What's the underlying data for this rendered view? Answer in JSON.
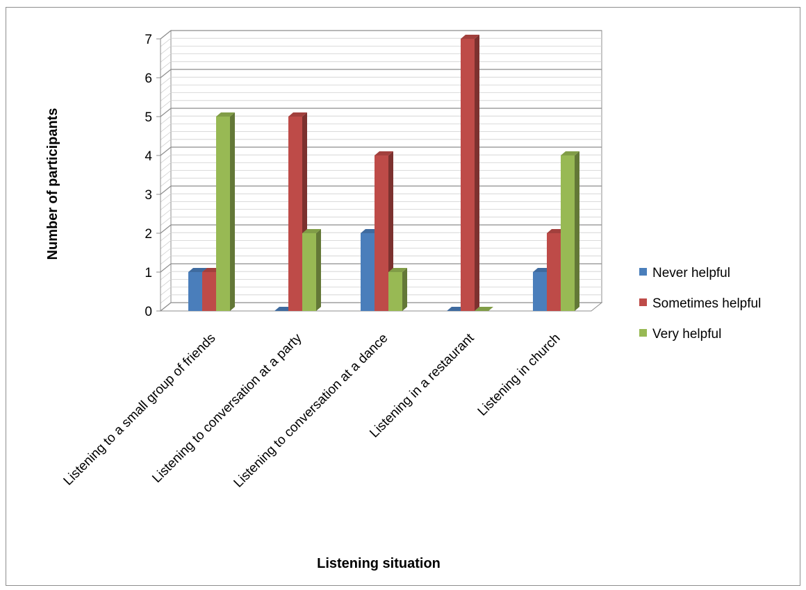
{
  "chart_data": {
    "type": "bar",
    "title": "",
    "xlabel": "Listening situation",
    "ylabel": "Number of participants",
    "categories": [
      "Listening to a small group of friends",
      "Listening to conversation at a party",
      "Listening to conversation at a dance",
      "Listening in a restaurant",
      "Listening in church"
    ],
    "series": [
      {
        "name": "Never helpful",
        "values": [
          1,
          0,
          2,
          0,
          1
        ],
        "color": "#4a7ebb"
      },
      {
        "name": "Sometimes helpful",
        "values": [
          1,
          5,
          4,
          7,
          2
        ],
        "color": "#be4b48"
      },
      {
        "name": "Very helpful",
        "values": [
          5,
          2,
          1,
          0,
          4
        ],
        "color": "#98b954"
      }
    ],
    "ylim": [
      0,
      7
    ],
    "yticks": [
      "0",
      "1",
      "2",
      "3",
      "4",
      "5",
      "6",
      "7"
    ],
    "grid": true,
    "style": "3d-clustered-column",
    "legend_position": "right"
  }
}
